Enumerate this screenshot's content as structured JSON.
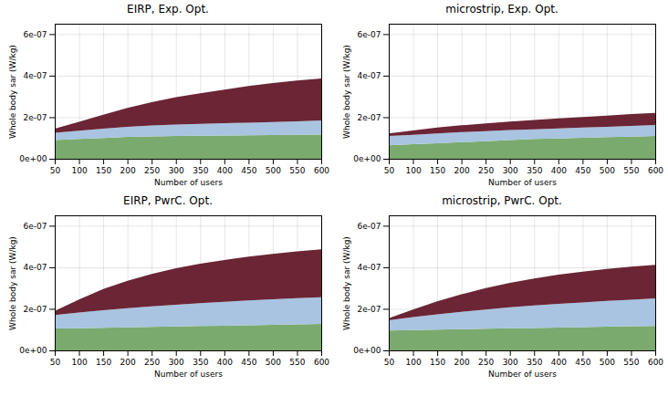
{
  "chart_data": [
    {
      "type": "area",
      "title": "EIRP, Exp. Opt.",
      "xlabel": "Number of users",
      "ylabel": "Whole body sar (W/kg)",
      "x": [
        50,
        100,
        150,
        200,
        250,
        300,
        350,
        400,
        450,
        500,
        550,
        600
      ],
      "series": [
        {
          "color": "#7aaa6e",
          "values": [
            9e-08,
            9.5e-08,
            1e-07,
            1.05e-07,
            1.08e-07,
            1.1e-07,
            1.11e-07,
            1.12e-07,
            1.13e-07,
            1.14e-07,
            1.15e-07,
            1.16e-07
          ]
        },
        {
          "color": "#a8c4e0",
          "values": [
            1.25e-07,
            1.35e-07,
            1.45e-07,
            1.54e-07,
            1.6e-07,
            1.65e-07,
            1.68e-07,
            1.71e-07,
            1.74e-07,
            1.77e-07,
            1.8e-07,
            1.85e-07
          ]
        },
        {
          "color": "#6b2535",
          "values": [
            1.45e-07,
            1.78e-07,
            2.12e-07,
            2.45e-07,
            2.72e-07,
            2.96e-07,
            3.15e-07,
            3.33e-07,
            3.5e-07,
            3.64e-07,
            3.77e-07,
            3.87e-07
          ]
        }
      ],
      "xlim": [
        50,
        600
      ],
      "xticks": [
        50,
        100,
        150,
        200,
        250,
        300,
        350,
        400,
        450,
        500,
        550,
        600
      ],
      "ylim": [
        0,
        6.5e-07
      ],
      "yticks": [
        {
          "value": 0,
          "label": "0e+00"
        },
        {
          "value": 2e-07,
          "label": "2e-07"
        },
        {
          "value": 4e-07,
          "label": "4e-07"
        },
        {
          "value": 6e-07,
          "label": "6e-07"
        }
      ],
      "grid": true
    },
    {
      "type": "area",
      "title": "microstrip, Exp. Opt.",
      "xlabel": "Number of users",
      "ylabel": "Whole body sar (W/kg)",
      "x": [
        50,
        100,
        150,
        200,
        250,
        300,
        350,
        400,
        450,
        500,
        550,
        600
      ],
      "series": [
        {
          "color": "#7aaa6e",
          "values": [
            6.5e-08,
            7e-08,
            7.5e-08,
            8e-08,
            8.5e-08,
            9e-08,
            9.5e-08,
            9.8e-08,
            1.01e-07,
            1.04e-07,
            1.07e-07,
            1.1e-07
          ]
        },
        {
          "color": "#a8c4e0",
          "values": [
            1.1e-07,
            1.15e-07,
            1.22e-07,
            1.28e-07,
            1.33e-07,
            1.38e-07,
            1.42e-07,
            1.46e-07,
            1.5e-07,
            1.54e-07,
            1.58e-07,
            1.62e-07
          ]
        },
        {
          "color": "#6b2535",
          "values": [
            1.22e-07,
            1.36e-07,
            1.5e-07,
            1.61e-07,
            1.7e-07,
            1.79e-07,
            1.87e-07,
            1.94e-07,
            2.01e-07,
            2.08e-07,
            2.15e-07,
            2.21e-07
          ]
        }
      ],
      "xlim": [
        50,
        600
      ],
      "xticks": [
        50,
        100,
        150,
        200,
        250,
        300,
        350,
        400,
        450,
        500,
        550,
        600
      ],
      "ylim": [
        0,
        6.5e-07
      ],
      "yticks": [
        {
          "value": 0,
          "label": "0e+00"
        },
        {
          "value": 2e-07,
          "label": "2e-07"
        },
        {
          "value": 4e-07,
          "label": "4e-07"
        },
        {
          "value": 6e-07,
          "label": "6e-07"
        }
      ],
      "grid": true
    },
    {
      "type": "area",
      "title": "EIRP, PwrC. Opt.",
      "xlabel": "Number of users",
      "ylabel": "Whole body sar (W/kg)",
      "x": [
        50,
        100,
        150,
        200,
        250,
        300,
        350,
        400,
        450,
        500,
        550,
        600
      ],
      "series": [
        {
          "color": "#7aaa6e",
          "values": [
            1.05e-07,
            1.07e-07,
            1.09e-07,
            1.11e-07,
            1.13e-07,
            1.15e-07,
            1.17e-07,
            1.19e-07,
            1.21e-07,
            1.23e-07,
            1.25e-07,
            1.27e-07
          ]
        },
        {
          "color": "#a8c4e0",
          "values": [
            1.7e-07,
            1.82e-07,
            1.93e-07,
            2.03e-07,
            2.12e-07,
            2.2e-07,
            2.27e-07,
            2.34e-07,
            2.4e-07,
            2.46e-07,
            2.51e-07,
            2.56e-07
          ]
        },
        {
          "color": "#6b2535",
          "values": [
            1.9e-07,
            2.45e-07,
            2.95e-07,
            3.35e-07,
            3.68e-07,
            3.95e-07,
            4.17e-07,
            4.35e-07,
            4.51e-07,
            4.64e-07,
            4.76e-07,
            4.86e-07
          ]
        }
      ],
      "xlim": [
        50,
        600
      ],
      "xticks": [
        50,
        100,
        150,
        200,
        250,
        300,
        350,
        400,
        450,
        500,
        550,
        600
      ],
      "ylim": [
        0,
        6.5e-07
      ],
      "yticks": [
        {
          "value": 0,
          "label": "0e+00"
        },
        {
          "value": 2e-07,
          "label": "2e-07"
        },
        {
          "value": 4e-07,
          "label": "4e-07"
        },
        {
          "value": 6e-07,
          "label": "6e-07"
        }
      ],
      "grid": true
    },
    {
      "type": "area",
      "title": "microstrip, PwrC. Opt.",
      "xlabel": "Number of users",
      "ylabel": "Whole body sar (W/kg)",
      "x": [
        50,
        100,
        150,
        200,
        250,
        300,
        350,
        400,
        450,
        500,
        550,
        600
      ],
      "series": [
        {
          "color": "#7aaa6e",
          "values": [
            9.5e-08,
            9.8e-08,
            1e-07,
            1.02e-07,
            1.04e-07,
            1.06e-07,
            1.08e-07,
            1.1e-07,
            1.12e-07,
            1.14e-07,
            1.16e-07,
            1.18e-07
          ]
        },
        {
          "color": "#a8c4e0",
          "values": [
            1.45e-07,
            1.6e-07,
            1.74e-07,
            1.86e-07,
            1.97e-07,
            2.07e-07,
            2.16e-07,
            2.24e-07,
            2.31e-07,
            2.38e-07,
            2.44e-07,
            2.5e-07
          ]
        },
        {
          "color": "#6b2535",
          "values": [
            1.55e-07,
            1.96e-07,
            2.36e-07,
            2.7e-07,
            3e-07,
            3.25e-07,
            3.46e-07,
            3.64e-07,
            3.79e-07,
            3.92e-07,
            4.03e-07,
            4.12e-07
          ]
        }
      ],
      "xlim": [
        50,
        600
      ],
      "xticks": [
        50,
        100,
        150,
        200,
        250,
        300,
        350,
        400,
        450,
        500,
        550,
        600
      ],
      "ylim": [
        0,
        6.5e-07
      ],
      "yticks": [
        {
          "value": 0,
          "label": "0e+00"
        },
        {
          "value": 2e-07,
          "label": "2e-07"
        },
        {
          "value": 4e-07,
          "label": "4e-07"
        },
        {
          "value": 6e-07,
          "label": "6e-07"
        }
      ],
      "grid": true
    }
  ]
}
